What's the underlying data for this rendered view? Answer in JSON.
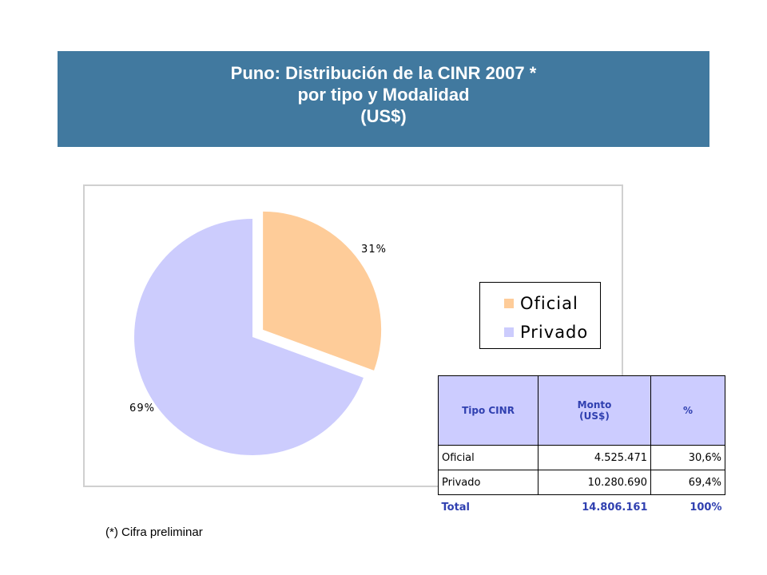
{
  "header": {
    "title_line1": "Puno: Distribución de la CINR 2007 *",
    "title_line2": "por tipo y Modalidad",
    "title_line3": "(US$)"
  },
  "chart_data": {
    "type": "pie",
    "categories": [
      "Oficial",
      "Privado"
    ],
    "values": [
      30.6,
      69.4
    ],
    "data_labels": [
      "31%",
      "69%"
    ],
    "colors": [
      "#fecc99",
      "#ccccfd"
    ],
    "exploded": [
      "Oficial"
    ],
    "legend_position": "right"
  },
  "legend": {
    "items": [
      {
        "label": "Oficial",
        "color": "#fecc99"
      },
      {
        "label": "Privado",
        "color": "#ccccfd"
      }
    ]
  },
  "table": {
    "headers": {
      "tipo": "Tipo CINR",
      "monto_1": "Monto",
      "monto_2": "(US$)",
      "pct": "%"
    },
    "rows": [
      {
        "tipo": "Oficial",
        "monto": "4.525.471",
        "pct": "30,6%"
      },
      {
        "tipo": "Privado",
        "monto": "10.280.690",
        "pct": "69,4%"
      }
    ],
    "total": {
      "tipo": "Total",
      "monto": "14.806.161",
      "pct": "100%"
    }
  },
  "footnote": "(*) Cifra preliminar"
}
